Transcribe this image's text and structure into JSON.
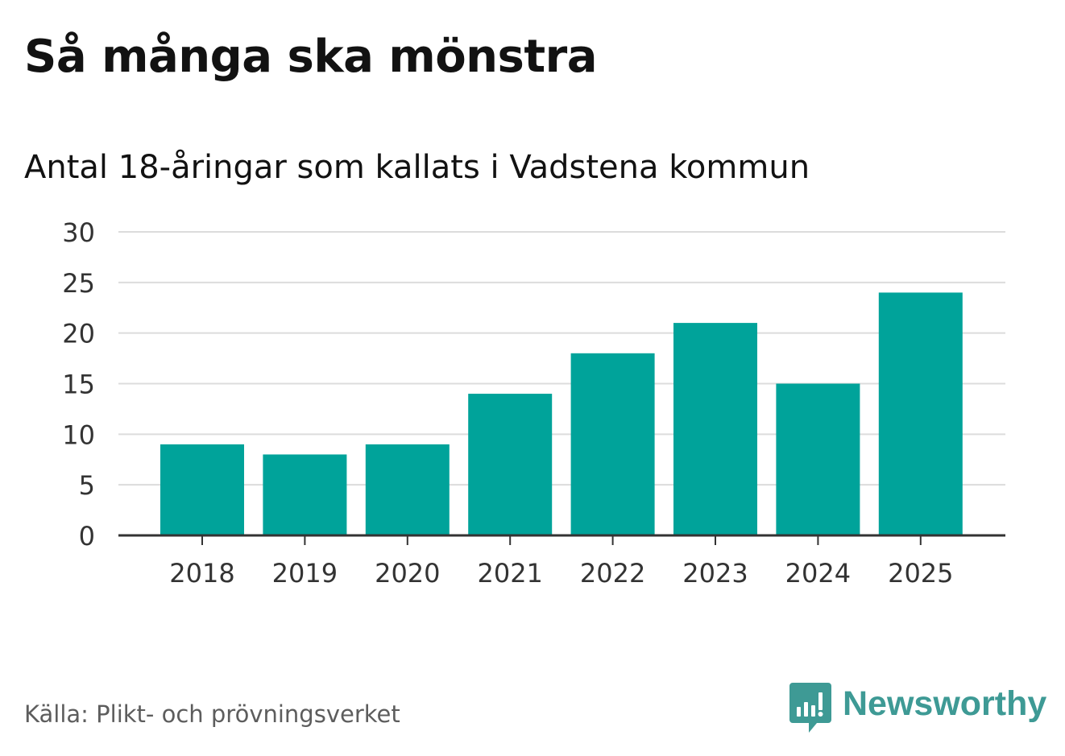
{
  "title": "Så många ska mönstra",
  "subtitle": "Antal 18-åringar som kallats i Vadstena kommun",
  "source": "Källa: Plikt- och prövningsverket",
  "brand": {
    "name": "Newsworthy",
    "icon": "newsworthy-logo-icon",
    "color": "#3e9a95"
  },
  "chart_data": {
    "type": "bar",
    "title": "Så många ska mönstra",
    "subtitle": "Antal 18-åringar som kallats i Vadstena kommun",
    "xlabel": "",
    "ylabel": "",
    "categories": [
      "2018",
      "2019",
      "2020",
      "2021",
      "2022",
      "2023",
      "2024",
      "2025"
    ],
    "values": [
      9,
      8,
      9,
      14,
      18,
      21,
      15,
      24
    ],
    "ylim": [
      0,
      30
    ],
    "yticks": [
      "0",
      "5",
      "10",
      "15",
      "20",
      "25",
      "30"
    ],
    "grid": true,
    "bar_color": "#00a39a",
    "grid_color": "#dcdcdc",
    "axis_color": "#333333"
  }
}
